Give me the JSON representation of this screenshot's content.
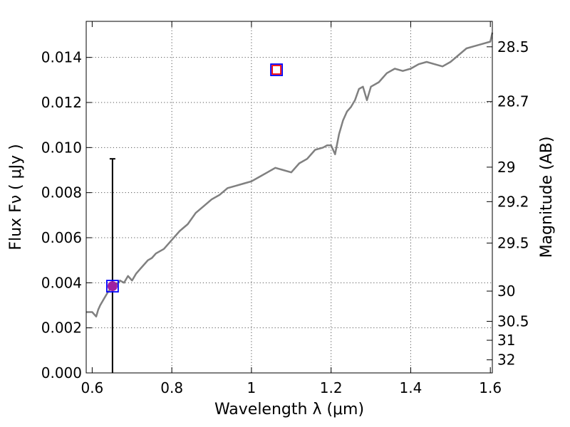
{
  "chart_data": {
    "type": "line",
    "xlabel": "Wavelength  λ (μm)",
    "ylabel": "Flux  Fν  ( μJy )",
    "ylabel_right": "Magnitude (AB)",
    "xlim": [
      0.585,
      1.605
    ],
    "ylim": [
      0.0,
      0.0156
    ],
    "grid": true,
    "x_ticks": [
      0.6,
      0.8,
      1.0,
      1.2,
      1.4,
      1.6
    ],
    "x_tick_labels": [
      "0.6",
      "0.8",
      "1",
      "1.2",
      "1.4",
      "1.6"
    ],
    "y_ticks": [
      0.0,
      0.002,
      0.004,
      0.006,
      0.008,
      0.01,
      0.012,
      0.014
    ],
    "y_tick_labels": [
      "0.000",
      "0.002",
      "0.004",
      "0.006",
      "0.008",
      "0.010",
      "0.012",
      "0.014"
    ],
    "right_axis_ticks": [
      {
        "label": "28.5",
        "flux": 0.01447
      },
      {
        "label": "28.7",
        "flux": 0.01204
      },
      {
        "label": "29",
        "flux": 0.00913
      },
      {
        "label": "29.2",
        "flux": 0.0076
      },
      {
        "label": "29.5",
        "flux": 0.00576
      },
      {
        "label": "30",
        "flux": 0.00363
      },
      {
        "label": "30.5",
        "flux": 0.00229
      },
      {
        "label": "31",
        "flux": 0.00145
      },
      {
        "label": "32",
        "flux": 0.00058
      }
    ],
    "series": [
      {
        "color": "#808080",
        "x": [
          0.585,
          0.6,
          0.61,
          0.615,
          0.62,
          0.63,
          0.64,
          0.65,
          0.66,
          0.67,
          0.68,
          0.69,
          0.7,
          0.71,
          0.72,
          0.73,
          0.74,
          0.75,
          0.76,
          0.78,
          0.8,
          0.82,
          0.84,
          0.86,
          0.88,
          0.9,
          0.92,
          0.94,
          0.96,
          0.98,
          1.0,
          1.02,
          1.04,
          1.06,
          1.08,
          1.1,
          1.12,
          1.14,
          1.16,
          1.18,
          1.19,
          1.2,
          1.21,
          1.22,
          1.23,
          1.24,
          1.25,
          1.26,
          1.27,
          1.28,
          1.29,
          1.3,
          1.32,
          1.34,
          1.36,
          1.38,
          1.4,
          1.42,
          1.44,
          1.46,
          1.48,
          1.5,
          1.52,
          1.54,
          1.56,
          1.58,
          1.6,
          1.605
        ],
        "y": [
          0.0027,
          0.0027,
          0.0025,
          0.0028,
          0.003,
          0.0033,
          0.0036,
          0.0038,
          0.0039,
          0.0041,
          0.004,
          0.0043,
          0.0041,
          0.0044,
          0.0046,
          0.0048,
          0.005,
          0.0051,
          0.0053,
          0.0055,
          0.0059,
          0.0063,
          0.0066,
          0.0071,
          0.0074,
          0.0077,
          0.0079,
          0.0082,
          0.0083,
          0.0084,
          0.0085,
          0.0087,
          0.0089,
          0.0091,
          0.009,
          0.0089,
          0.0093,
          0.0095,
          0.0099,
          0.01,
          0.0101,
          0.0101,
          0.0097,
          0.0106,
          0.0112,
          0.0116,
          0.0118,
          0.0121,
          0.0126,
          0.0127,
          0.0121,
          0.0127,
          0.0129,
          0.0133,
          0.0135,
          0.0134,
          0.0135,
          0.0137,
          0.0138,
          0.0137,
          0.0136,
          0.0138,
          0.0141,
          0.0144,
          0.0145,
          0.0146,
          0.0147,
          0.0151
        ]
      }
    ],
    "markers": [
      {
        "shape": "square",
        "x": 0.651,
        "y": 0.00385,
        "stroke": "#0000ff"
      },
      {
        "shape": "circle",
        "x": 0.651,
        "y": 0.00385,
        "fill": "#a020a0"
      },
      {
        "shape": "square",
        "x": 1.063,
        "y": 0.01345,
        "stroke": "#0000ff"
      },
      {
        "shape": "square",
        "x": 1.063,
        "y": 0.01345,
        "stroke": "#ff0000"
      }
    ],
    "error_bars": [
      {
        "x": 0.651,
        "y_low": 0.0,
        "y_high": 0.0095
      }
    ]
  }
}
